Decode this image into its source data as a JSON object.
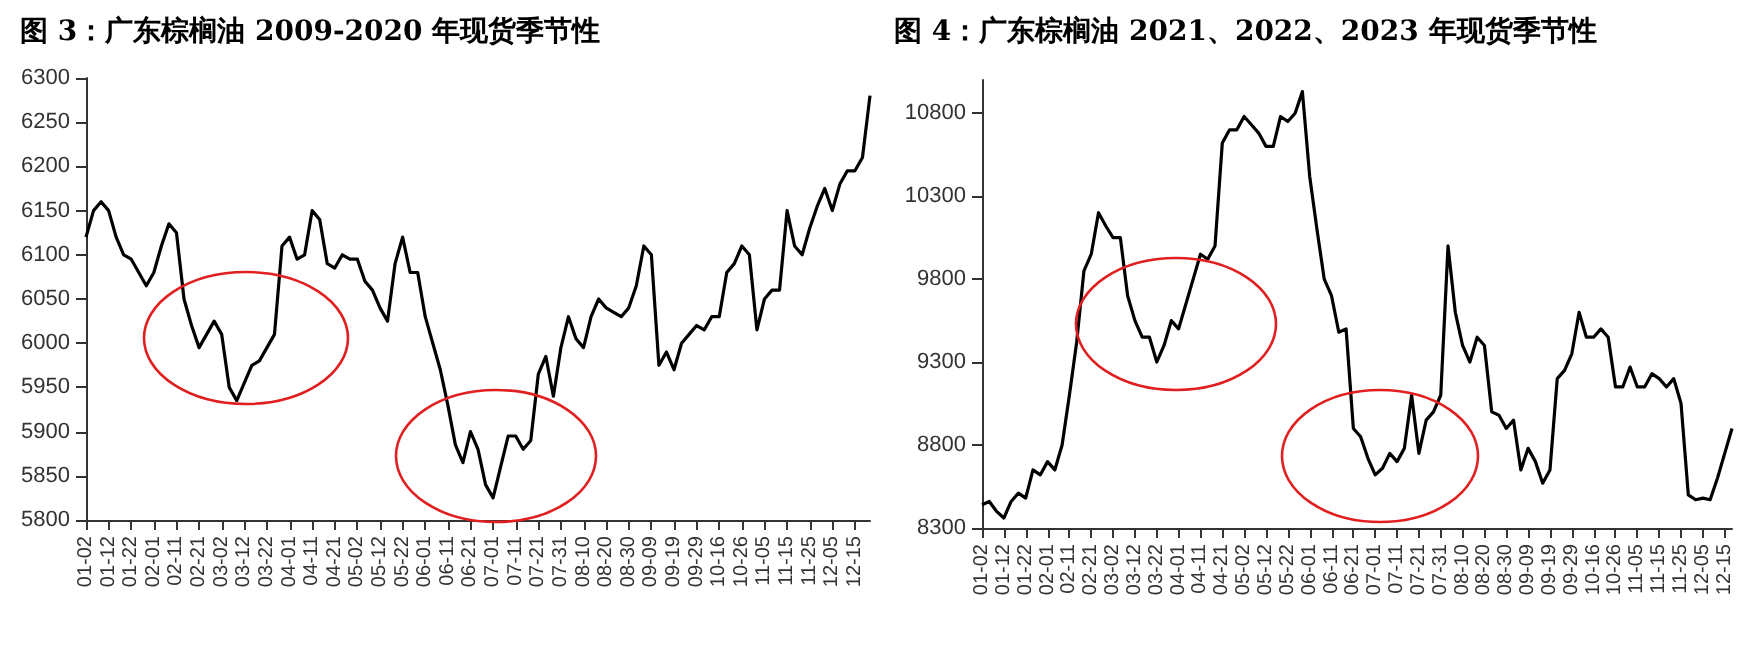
{
  "chart_data": [
    {
      "type": "line",
      "title": "图 3：广东棕榈油 2009-2020 年现货季节性",
      "categories": [
        "01-02",
        null,
        null,
        "01-12",
        null,
        null,
        "01-22",
        null,
        null,
        "02-01",
        null,
        null,
        "02-11",
        null,
        null,
        "02-21",
        null,
        null,
        "03-02",
        null,
        null,
        "03-12",
        null,
        null,
        "03-22",
        null,
        null,
        "04-01",
        null,
        null,
        "04-11",
        null,
        null,
        "04-21",
        null,
        null,
        "05-02",
        null,
        null,
        "05-12",
        null,
        null,
        "05-22",
        null,
        null,
        "06-01",
        null,
        null,
        "06-11",
        null,
        null,
        "06-21",
        null,
        null,
        "07-01",
        null,
        null,
        "07-11",
        null,
        null,
        "07-21",
        null,
        null,
        "07-31",
        null,
        null,
        "08-10",
        null,
        null,
        "08-20",
        null,
        null,
        "08-30",
        null,
        null,
        "09-09",
        null,
        null,
        "09-19",
        null,
        null,
        "09-29",
        null,
        null,
        "10-16",
        null,
        null,
        "10-26",
        null,
        null,
        "11-05",
        null,
        null,
        "11-15",
        null,
        null,
        "11-25",
        null,
        null,
        "12-05",
        null,
        null,
        "12-15",
        null,
        null
      ],
      "series": [
        {
          "color": "#000000",
          "values": [
            6120,
            6150,
            6160,
            6150,
            6120,
            6100,
            6095,
            6080,
            6065,
            6080,
            6110,
            6135,
            6125,
            6050,
            6020,
            5995,
            6010,
            6025,
            6010,
            5950,
            5935,
            5955,
            5975,
            5980,
            5995,
            6010,
            6110,
            6120,
            6095,
            6100,
            6150,
            6140,
            6090,
            6085,
            6100,
            6095,
            6095,
            6070,
            6060,
            6040,
            6025,
            6090,
            6120,
            6080,
            6080,
            6030,
            6000,
            5970,
            5930,
            5885,
            5865,
            5900,
            5880,
            5840,
            5825,
            5860,
            5895,
            5895,
            5880,
            5890,
            5965,
            5985,
            5940,
            5995,
            6030,
            6005,
            5995,
            6030,
            6050,
            6040,
            6035,
            6030,
            6040,
            6065,
            6110,
            6100,
            5975,
            5990,
            5970,
            6000,
            6010,
            6020,
            6015,
            6030,
            6030,
            6080,
            6090,
            6110,
            6100,
            6015,
            6050,
            6060,
            6060,
            6150,
            6110,
            6100,
            6130,
            6155,
            6175,
            6150,
            6180,
            6195,
            6195,
            6210,
            6280
          ]
        }
      ],
      "ylim": [
        5800,
        6300
      ],
      "yticks": [
        5800,
        5850,
        5900,
        5950,
        6000,
        6050,
        6100,
        6150,
        6200,
        6250,
        6300
      ],
      "grid": false,
      "marker": "none",
      "line_style": "solid"
    },
    {
      "type": "line",
      "title": "图 4：广东棕榈油 2021、2022、2023 年现货季节性",
      "categories": [
        "01-02",
        null,
        null,
        "01-12",
        null,
        null,
        "01-22",
        null,
        null,
        "02-01",
        null,
        null,
        "02-11",
        null,
        null,
        "02-21",
        null,
        null,
        "03-02",
        null,
        null,
        "03-12",
        null,
        null,
        "03-22",
        null,
        null,
        "04-01",
        null,
        null,
        "04-11",
        null,
        null,
        "04-21",
        null,
        null,
        "05-02",
        null,
        null,
        "05-12",
        null,
        null,
        "05-22",
        null,
        null,
        "06-01",
        null,
        null,
        "06-11",
        null,
        null,
        "06-21",
        null,
        null,
        "07-01",
        null,
        null,
        "07-11",
        null,
        null,
        "07-21",
        null,
        null,
        "07-31",
        null,
        null,
        "08-10",
        null,
        null,
        "08-20",
        null,
        null,
        "08-30",
        null,
        null,
        "09-09",
        null,
        null,
        "09-19",
        null,
        null,
        "09-29",
        null,
        null,
        "10-16",
        null,
        null,
        "10-26",
        null,
        null,
        "11-05",
        null,
        null,
        "11-15",
        null,
        null,
        "11-25",
        null,
        null,
        "12-05",
        null,
        null,
        "12-15",
        null
      ],
      "series": [
        {
          "color": "#000000",
          "values": [
            8440,
            8460,
            8400,
            8360,
            8460,
            8510,
            8480,
            8650,
            8620,
            8700,
            8650,
            8800,
            9100,
            9420,
            9850,
            9950,
            10200,
            10120,
            10050,
            10050,
            9700,
            9550,
            9450,
            9450,
            9300,
            9400,
            9550,
            9500,
            9650,
            9800,
            9950,
            9920,
            10000,
            10620,
            10700,
            10700,
            10780,
            10730,
            10680,
            10600,
            10600,
            10780,
            10750,
            10800,
            10930,
            10420,
            10100,
            9800,
            9700,
            9480,
            9500,
            8900,
            8850,
            8720,
            8620,
            8660,
            8750,
            8700,
            8780,
            9100,
            8750,
            8950,
            9000,
            9100,
            10000,
            9600,
            9400,
            9300,
            9450,
            9400,
            9000,
            8980,
            8900,
            8950,
            8650,
            8780,
            8700,
            8570,
            8650,
            9200,
            9250,
            9350,
            9600,
            9450,
            9450,
            9500,
            9450,
            9150,
            9150,
            9270,
            9150,
            9150,
            9230,
            9200,
            9150,
            9200,
            9050,
            8500,
            8470,
            8480,
            8470,
            8600,
            8750,
            8900
          ]
        }
      ],
      "ylim": [
        8300,
        11000
      ],
      "yticks": [
        8300,
        8800,
        9300,
        9800,
        10300,
        10800
      ],
      "grid": false,
      "marker": "none",
      "line_style": "solid"
    }
  ]
}
